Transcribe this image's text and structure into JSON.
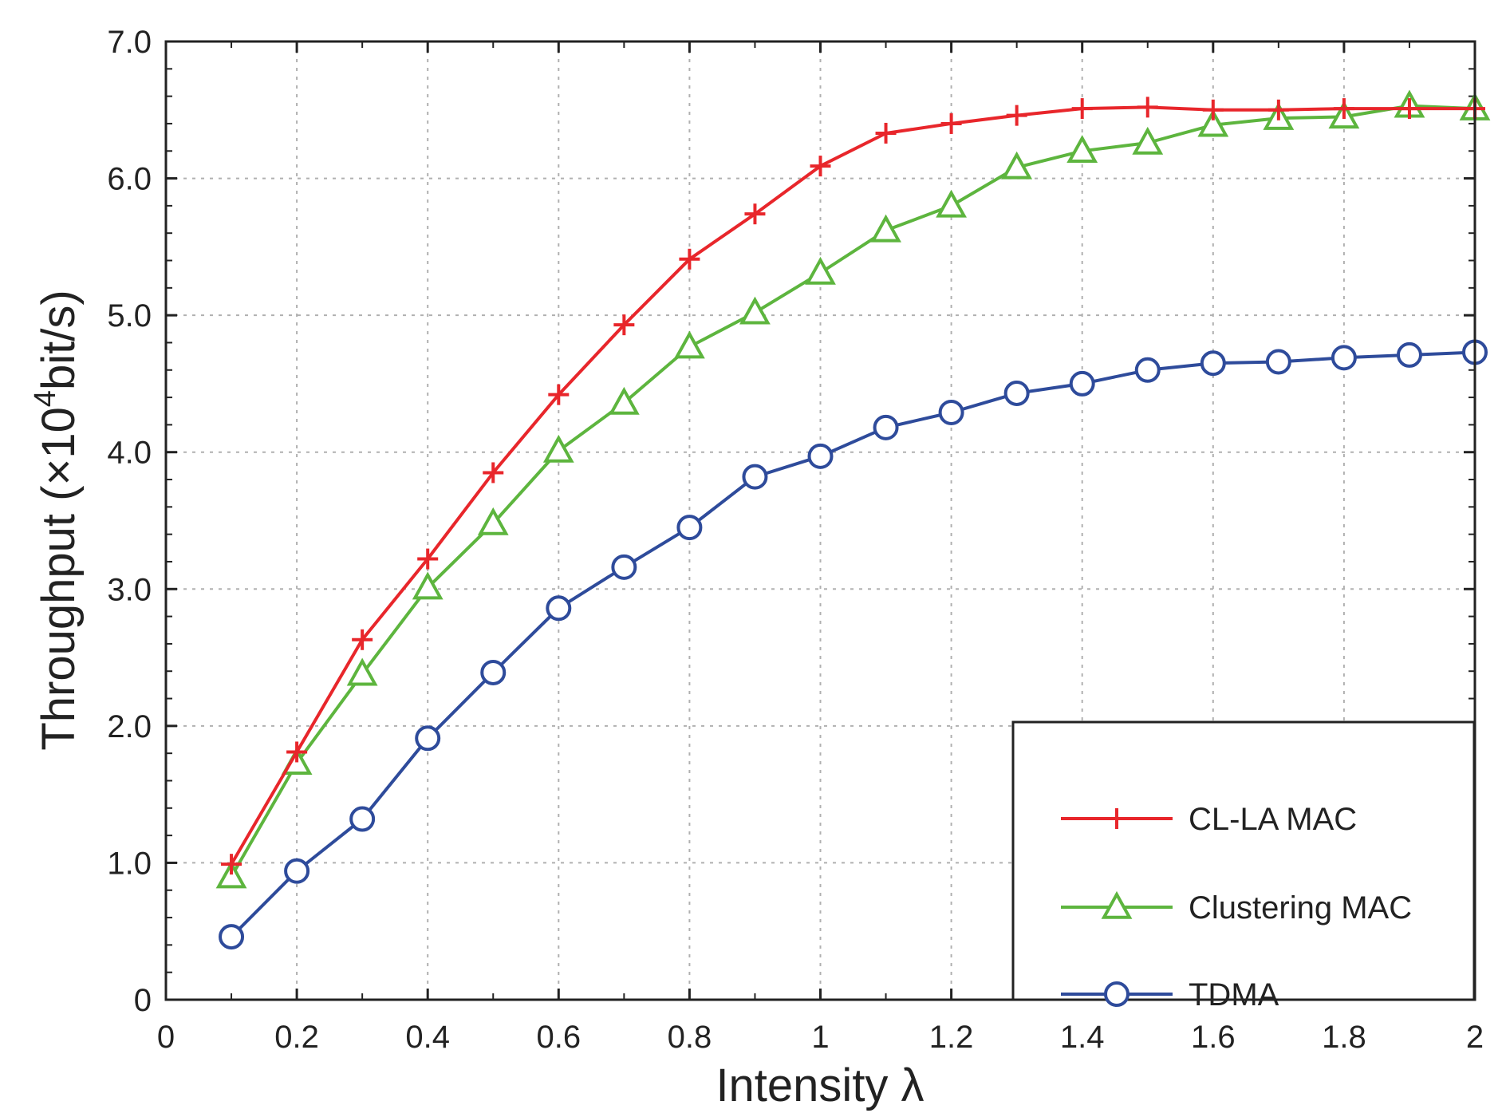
{
  "chart_data": {
    "type": "line",
    "title": "",
    "xlabel": "Intensity λ",
    "ylabel": {
      "prefix": "Throughput (×10",
      "exp": "4",
      "suffix": "bit/s)"
    },
    "xlim": [
      0,
      2
    ],
    "ylim": [
      0,
      7
    ],
    "grid": true,
    "legend_position": "bottom-right",
    "x_ticks": [
      {
        "v": 0,
        "label": "0"
      },
      {
        "v": 0.2,
        "label": "0.2"
      },
      {
        "v": 0.4,
        "label": "0.4"
      },
      {
        "v": 0.6,
        "label": "0.6"
      },
      {
        "v": 0.8,
        "label": "0.8"
      },
      {
        "v": 1,
        "label": "1"
      },
      {
        "v": 1.2,
        "label": "1.2"
      },
      {
        "v": 1.4,
        "label": "1.4"
      },
      {
        "v": 1.6,
        "label": "1.6"
      },
      {
        "v": 1.8,
        "label": "1.8"
      },
      {
        "v": 2,
        "label": "2"
      }
    ],
    "y_ticks": [
      {
        "v": 0,
        "label": "0"
      },
      {
        "v": 1,
        "label": "1.0"
      },
      {
        "v": 2,
        "label": "2.0"
      },
      {
        "v": 3,
        "label": "3.0"
      },
      {
        "v": 4,
        "label": "4.0"
      },
      {
        "v": 5,
        "label": "5.0"
      },
      {
        "v": 6,
        "label": "6.0"
      },
      {
        "v": 7,
        "label": "7.0"
      }
    ],
    "x": [
      0.1,
      0.2,
      0.3,
      0.4,
      0.5,
      0.6,
      0.7,
      0.8,
      0.9,
      1.0,
      1.1,
      1.2,
      1.3,
      1.4,
      1.5,
      1.6,
      1.7,
      1.8,
      1.9,
      2.0
    ],
    "series": [
      {
        "name": "CL-LA MAC",
        "color": "#e8262b",
        "marker": "plus",
        "values": [
          0.99,
          1.81,
          2.63,
          3.22,
          3.85,
          4.42,
          4.93,
          5.41,
          5.74,
          6.09,
          6.33,
          6.4,
          6.46,
          6.51,
          6.52,
          6.5,
          6.5,
          6.51,
          6.51,
          6.51
        ]
      },
      {
        "name": "Clustering MAC",
        "color": "#5db53e",
        "marker": "triangle",
        "values": [
          0.9,
          1.73,
          2.38,
          3.01,
          3.48,
          4.01,
          4.36,
          4.77,
          5.02,
          5.31,
          5.62,
          5.8,
          6.08,
          6.2,
          6.26,
          6.39,
          6.44,
          6.45,
          6.53,
          6.51
        ]
      },
      {
        "name": "TDMA",
        "color": "#2e4b9b",
        "marker": "circle",
        "values": [
          0.46,
          0.94,
          1.32,
          1.91,
          2.39,
          2.86,
          3.16,
          3.45,
          3.82,
          3.97,
          4.18,
          4.29,
          4.43,
          4.5,
          4.6,
          4.65,
          4.66,
          4.69,
          4.71,
          4.73
        ]
      }
    ]
  }
}
